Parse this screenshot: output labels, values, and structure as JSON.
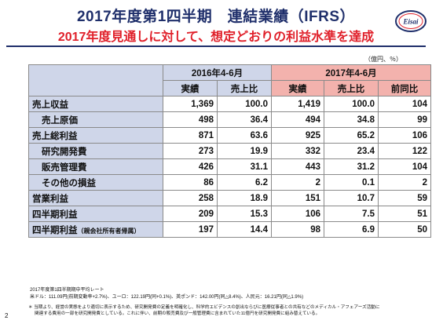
{
  "header": {
    "title": "2017年度第1四半期　連結業績（IFRS）",
    "subtitle": "2017年度見通しに対して、想定どおりの利益水準を達成",
    "logo_text": "Eisai",
    "unit": "（億円、％）"
  },
  "table": {
    "period_2016": "2016年4-6月",
    "period_2017": "2017年4-6月",
    "col_result": "実績",
    "col_ratio": "売上比",
    "col_yoy": "前同比",
    "rows": [
      {
        "label": "売上収益",
        "indent": false,
        "v": [
          "1,369",
          "100.0",
          "1,419",
          "100.0",
          "104"
        ]
      },
      {
        "label": "売上原価",
        "indent": true,
        "v": [
          "498",
          "36.4",
          "494",
          "34.8",
          "99"
        ]
      },
      {
        "label": "売上総利益",
        "indent": false,
        "v": [
          "871",
          "63.6",
          "925",
          "65.2",
          "106"
        ]
      },
      {
        "label": "研究開発費",
        "indent": true,
        "v": [
          "273",
          "19.9",
          "332",
          "23.4",
          "122"
        ]
      },
      {
        "label": "販売管理費",
        "indent": true,
        "v": [
          "426",
          "31.1",
          "443",
          "31.2",
          "104"
        ]
      },
      {
        "label": "その他の損益",
        "indent": true,
        "v": [
          "86",
          "6.2",
          "2",
          "0.1",
          "2"
        ]
      },
      {
        "label": "営業利益",
        "indent": false,
        "v": [
          "258",
          "18.9",
          "151",
          "10.7",
          "59"
        ]
      },
      {
        "label": "四半期利益",
        "indent": false,
        "v": [
          "209",
          "15.3",
          "106",
          "7.5",
          "51"
        ]
      },
      {
        "label": "四半期利益",
        "label_suffix": "（親会社所有者帰属）",
        "indent": false,
        "v": [
          "197",
          "14.4",
          "98",
          "6.9",
          "50"
        ]
      }
    ]
  },
  "notes": {
    "line1": "2017年度第1四半期期中平均レート",
    "line2": "米ドル：111.09円(前期変動率+2.7%)、ユーロ：122.19円(同+0.1%)、英ポンド：142.00円(同△8.4%)、人民元：16.21円(同△1.9%)",
    "footnote1": "＊ 当期より、経営の実態をより適切に表示するため、研究開発費の定義を明確化し、科学的エビデンスの創出ならびに医療従事者との共有などのメディカル・アフェアーズ活動に",
    "footnote2": "関連する費用の一部を研究開発費としている。これに伴い、前期の販売費及び一般管理費に含まれていた11億円を研究開発費に組み替えている。"
  },
  "page_number": "2",
  "colors": {
    "navy": "#1f2f6b",
    "red": "#e0202a",
    "header_blue": "#cfd6e9",
    "header_pink": "#f3b2ad"
  }
}
